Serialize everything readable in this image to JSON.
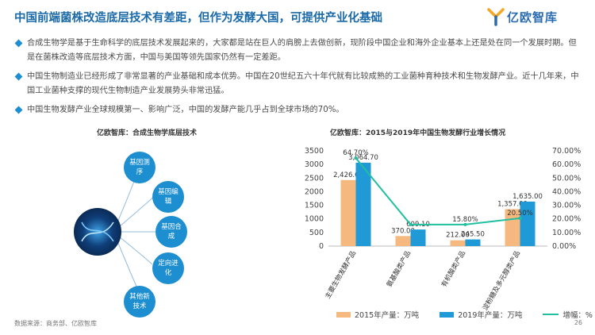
{
  "title": "中国前端菌株改造底层技术有差距，但作为发酵大国，可提供产业化基础",
  "logo": {
    "text": "亿欧智库"
  },
  "bullets": [
    "合成生物学是基于生命科学的底层技术发展起来的，大家都是站在巨人的肩膀上去做创新，现阶段中国企业和海外企业基本上还是处在同一个发展时期。但是在菌株改造等底层技术方面，中国与美国等领先国家仍然有一定差距。",
    "中国生物制造业已经形成了非常显著的产业基础和成本优势。中国在20世纪五六十年代就有比较成熟的工业菌种育种技术和生物发酵产业。近十几年来，中国工业菌种支撑的现代生物制造产业发展势头非常迅猛。",
    "中国生物发酵产业全球规模第一、影响广泛，中国的发酵产能几乎占到全球市场的70%。"
  ],
  "diagram": {
    "title": "亿欧智库：合成生物学底层技术",
    "nodes": [
      "基因测序",
      "基因编辑",
      "基因合成",
      "定向进化",
      "其他新技术"
    ]
  },
  "chart_title": "亿欧智库：2015与2019年中国生物发酵行业增长情况",
  "colors": {
    "accent": "#1b6aa8",
    "bar2015": "#f5b97f",
    "bar2019": "#1f9ad6",
    "growth": "#1fbf9f"
  },
  "chart_data": {
    "type": "bar",
    "categories": [
      "主要生物发酵产品",
      "氨基酸类产品",
      "有机酸类产品",
      "淀粉糖及多元醇类产品"
    ],
    "series": [
      {
        "name": "2015年产量：万吨",
        "type": "bar",
        "values": [
          2426.0,
          370.0,
          212.0,
          1357.0
        ],
        "labels": [
          "2,426.00",
          "370.00",
          "212.00",
          "1,357.00"
        ]
      },
      {
        "name": "2019年产量：万吨",
        "type": "bar",
        "values": [
          3064.7,
          609.1,
          245.5,
          1635.0
        ],
        "labels": [
          "3,064.70",
          "609.10",
          "245.50",
          "1,635.00"
        ]
      },
      {
        "name": "增幅：%",
        "type": "line",
        "axis": "right",
        "values": [
          64.7,
          15.8,
          15.8,
          20.5
        ],
        "labels": [
          "64.70%",
          "",
          "15.80%",
          "20.50%"
        ]
      }
    ],
    "ylim": [
      0,
      3500
    ],
    "yticks": [
      "0",
      "500",
      "1000",
      "1500",
      "2000",
      "2500",
      "3000",
      "3500"
    ],
    "y2lim": [
      0,
      70
    ],
    "y2ticks": [
      "0.00%",
      "10.00%",
      "20.00%",
      "30.00%",
      "40.00%",
      "50.00%",
      "60.00%",
      "70.00%"
    ],
    "legend": "bottom"
  },
  "footer": "数据来源：商务部、亿欧智库",
  "page_number": "26"
}
